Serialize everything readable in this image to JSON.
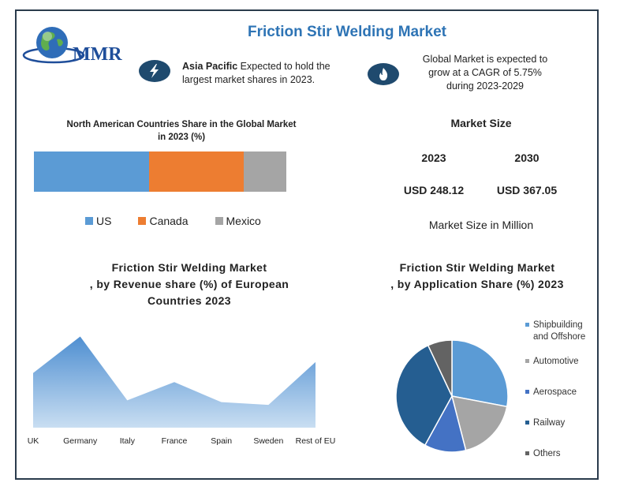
{
  "page_title": "Friction Stir Welding Market",
  "logo": {
    "text": "MMR",
    "icon": "globe-icon"
  },
  "highlights": [
    {
      "icon": "bolt-icon",
      "bold": "Asia Pacific",
      "text": " Expected to hold the",
      "text2": "largest market shares in 2023."
    },
    {
      "icon": "flame-icon",
      "line1": "Global Market is expected to",
      "line2": "grow at a CAGR of 5.75%",
      "line3": "during 2023-2029"
    }
  ],
  "market_size": {
    "heading": "Market Size",
    "years": [
      "2023",
      "2030"
    ],
    "values": [
      "USD 248.12",
      "USD 367.05"
    ],
    "note": "Market Size in Million"
  },
  "colors": {
    "us": "#5b9bd5",
    "canada": "#ed7d31",
    "mexico": "#a5a5a5",
    "title": "#2e74b5",
    "frame": "#2a3b4c"
  },
  "chart_data": [
    {
      "type": "bar",
      "title_line1": "North American Countries Share in the Global Market",
      "title_line2": "in 2023 (%)",
      "orientation": "horizontal-stacked",
      "series": [
        {
          "name": "US",
          "values": [
            45.5
          ]
        },
        {
          "name": "Canada",
          "values": [
            37.5
          ]
        },
        {
          "name": "Mexico",
          "values": [
            17
          ]
        }
      ],
      "legend_position": "bottom"
    },
    {
      "type": "area",
      "title_line1": "Friction Stir Welding Market",
      "title_line2": ", by Revenue share (%) of European",
      "title_line3": "Countries 2023",
      "categories": [
        "UK",
        "Germany",
        "Italy",
        "France",
        "Spain",
        "Sweden",
        "Rest of EU"
      ],
      "values": [
        60,
        100,
        30,
        50,
        28,
        25,
        72
      ],
      "ylim": [
        0,
        110
      ]
    },
    {
      "type": "pie",
      "title_line1": "Friction Stir Welding Market",
      "title_line2": ", by Application  Share (%) 2023",
      "labels": [
        "Shipbuilding and Offshore",
        "Automotive",
        "Aerospace",
        "Railway",
        "Others"
      ],
      "legend_lines": [
        [
          "Shipbuilding",
          "and Offshore"
        ],
        [
          "Automotive"
        ],
        [
          "Aerospace"
        ],
        [
          "Railway"
        ],
        [
          "Others"
        ]
      ],
      "values": [
        28,
        18,
        12,
        35,
        7
      ],
      "colors": [
        "#5b9bd5",
        "#a5a5a5",
        "#4472c4",
        "#255e91",
        "#636363"
      ],
      "legend_position": "right"
    }
  ]
}
